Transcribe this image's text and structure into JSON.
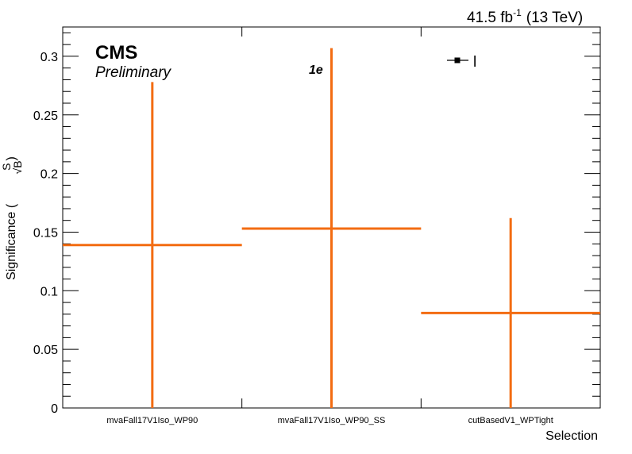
{
  "header": {
    "lumi": "41.5 fb",
    "lumi_exp": "-1",
    "energy": "(13 TeV)"
  },
  "labels": {
    "experiment": "CMS",
    "status": "Preliminary",
    "channel": "1e",
    "legend_entry": "l"
  },
  "colors": {
    "series": "#f36c12",
    "frame": "#000000"
  },
  "chart_data": {
    "type": "histogram",
    "title": "",
    "xlabel": "Selection",
    "ylabel": "Significance (S/√B)",
    "ylabel_main": "Significance (",
    "ylabel_num": "S",
    "ylabel_den": "√B",
    "ylabel_close": ")",
    "categories": [
      "mvaFall17V1Iso_WP90",
      "mvaFall17V1Iso_WP90_SS",
      "cutBasedV1_WPTight"
    ],
    "series": [
      {
        "name": "",
        "values": [
          0.139,
          0.153,
          0.081
        ],
        "err_low": [
          0.139,
          0.153,
          0.081
        ],
        "err_high": [
          0.139,
          0.154,
          0.081
        ]
      }
    ],
    "ylim": [
      0,
      0.325
    ],
    "yticks": [
      0,
      0.05,
      0.1,
      0.15,
      0.2,
      0.25,
      0.3
    ],
    "ytick_labels": [
      "0",
      "0.05",
      "0.1",
      "0.15",
      "0.2",
      "0.25",
      "0.3"
    ],
    "grid": false,
    "legend_position": "top-right"
  }
}
